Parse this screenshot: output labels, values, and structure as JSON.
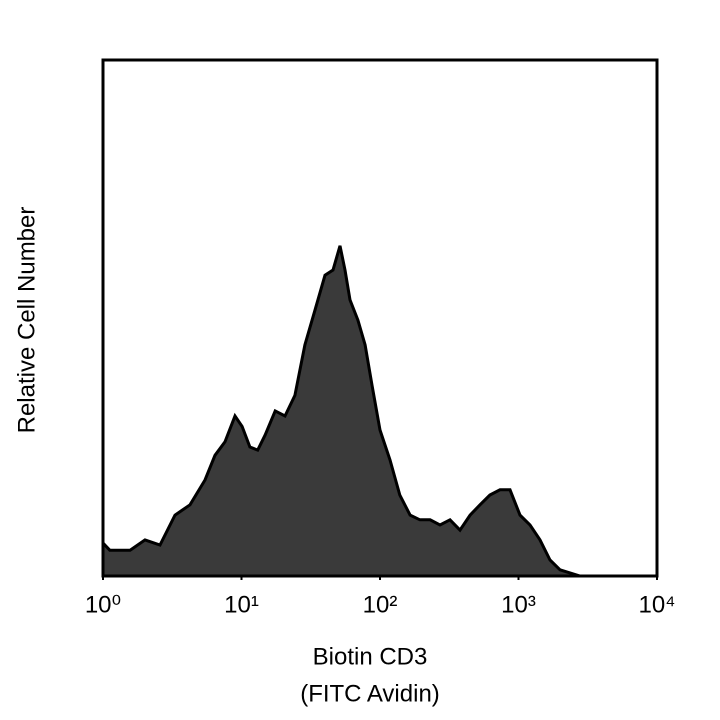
{
  "chart_data": {
    "type": "area",
    "xlabel": [
      "Biotin CD3",
      "(FITC Avidin)"
    ],
    "ylabel": "Relative Cell Number",
    "xscale": "log",
    "xlim": [
      1,
      10000
    ],
    "ylim": [
      0,
      100
    ],
    "xticks": [
      {
        "value": 1,
        "label": "10⁰"
      },
      {
        "value": 10,
        "label": "10¹"
      },
      {
        "value": 100,
        "label": "10²"
      },
      {
        "value": 1000,
        "label": "10³"
      },
      {
        "value": 10000,
        "label": "10⁴"
      }
    ],
    "grid": false,
    "color": "#3a3a3a",
    "edge_color": "#000000",
    "x": [
      1,
      1.12,
      1.57,
      2.01,
      2.58,
      3.31,
      4.25,
      5.45,
      6.44,
      7.6,
      8.98,
      10.1,
      11.5,
      13.1,
      14.8,
      17.5,
      20.6,
      24.3,
      28.7,
      34,
      40.1,
      45.8,
      51.4,
      55.9,
      60.7,
      69.3,
      78,
      87.5,
      100,
      118,
      139,
      165,
      194,
      230,
      271,
      320,
      378,
      447,
      527,
      622,
      735,
      868,
      1025,
      1211,
      1430,
      1688,
      1995,
      2355,
      2780,
      10000
    ],
    "values": [
      6.4,
      5,
      5,
      7,
      6,
      11.8,
      13.8,
      18.6,
      23.4,
      26,
      31,
      29,
      25,
      24.4,
      27.3,
      32,
      31,
      35,
      44.8,
      51.6,
      58.3,
      59.3,
      64,
      59.3,
      53.5,
      49.6,
      44.8,
      37,
      28.3,
      22.5,
      15.7,
      11.8,
      10.9,
      10.9,
      9.9,
      10.9,
      8.9,
      11.8,
      13.8,
      15.7,
      16.7,
      16.7,
      11.8,
      9.9,
      7,
      3.1,
      1.2,
      0.6,
      0,
      0
    ]
  }
}
